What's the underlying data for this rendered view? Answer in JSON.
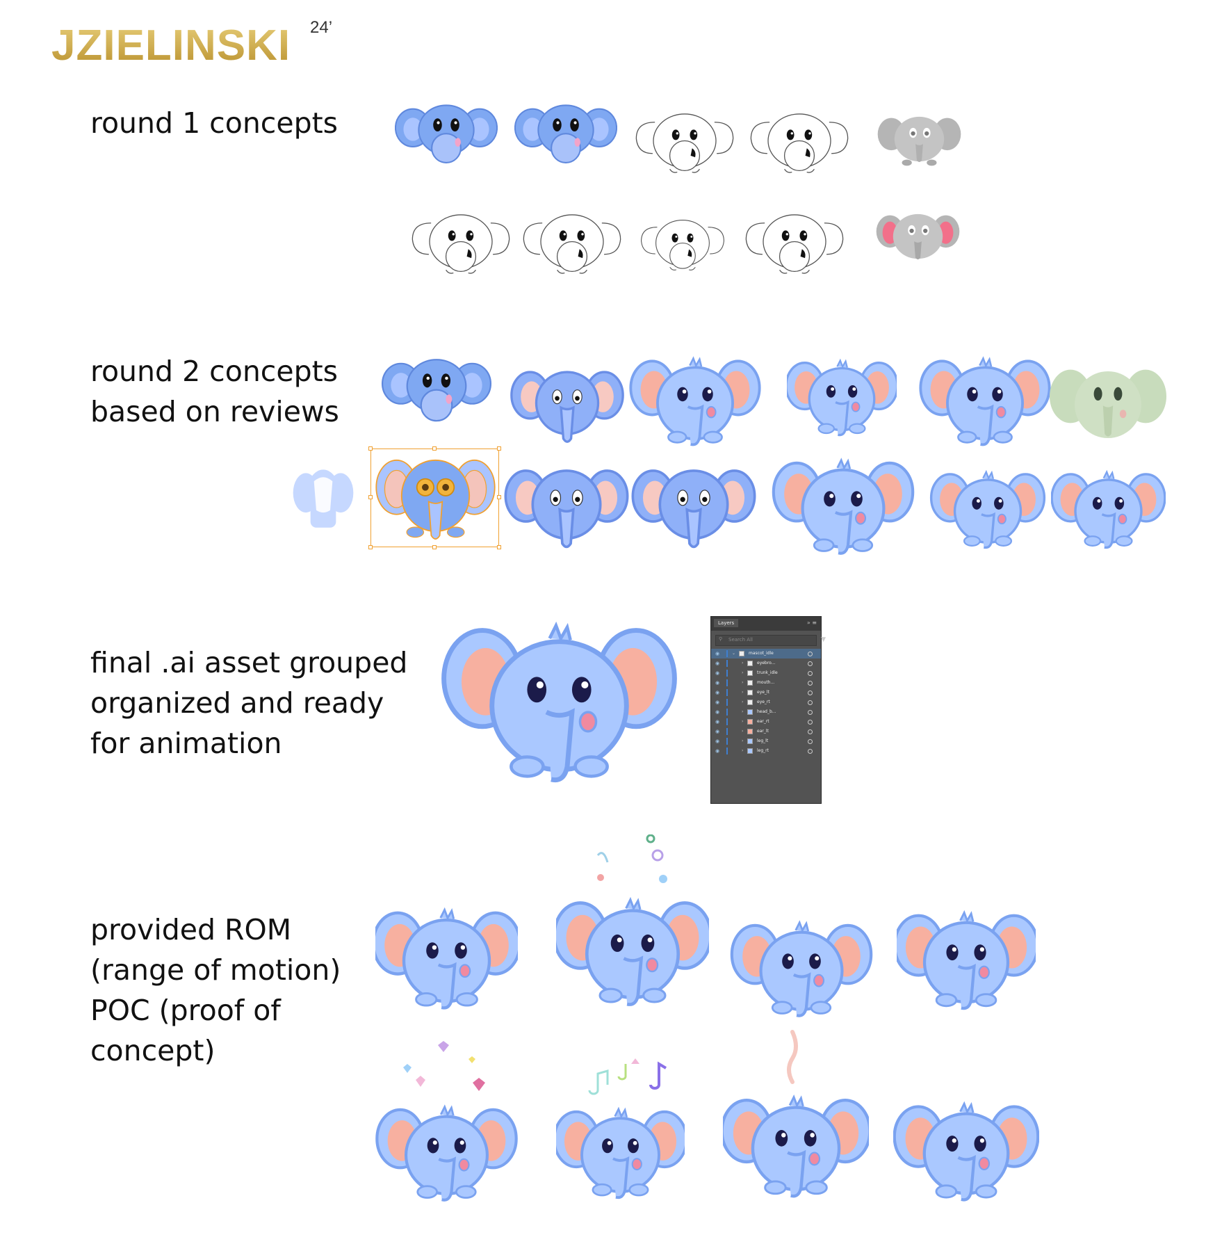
{
  "logo": {
    "text": "JZIELINSKI",
    "sup": "24’"
  },
  "sections": {
    "round1": {
      "lines": [
        "round 1 concepts"
      ]
    },
    "round2": {
      "lines": [
        "round 2 concepts",
        "based on reviews"
      ]
    },
    "final": {
      "lines": [
        "final .ai asset grouped",
        "organized and ready",
        "for animation"
      ]
    },
    "rom": {
      "lines": [
        "provided ROM",
        "(range of motion)",
        "POC (proof of",
        "concept)"
      ]
    }
  },
  "layers_panel": {
    "tab": "Layers",
    "search_placeholder": "Search All",
    "root_layer": "mascot_idle",
    "layers": [
      "eyebro...",
      "trunk_idle",
      "mouth...",
      "eye_lt",
      "eye_rt",
      "head_b...",
      "ear_rt",
      "ear_lt",
      "leg_lt",
      "leg_rt"
    ]
  },
  "colors": {
    "logo_gold": "#c9a94a",
    "elephant_blue": "#aac8ff",
    "elephant_outline": "#7aa2f0",
    "ear_pink": "#f7b0a0",
    "selection_orange": "#f0a030",
    "panel_gray": "#535353"
  },
  "icons": [
    "eye-icon",
    "search-icon",
    "filter-icon",
    "chevron-right-icon",
    "heart-icon",
    "music-note-icon"
  ]
}
